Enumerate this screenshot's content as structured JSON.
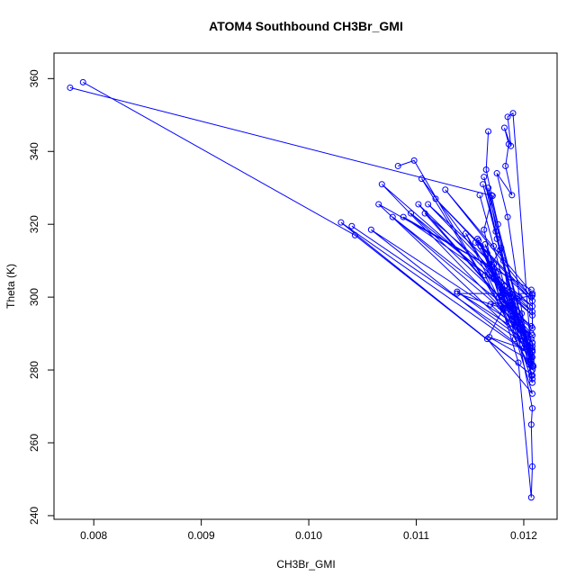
{
  "chart_data": {
    "type": "line",
    "title": "ATOM4 Southbound CH3Br_GMI",
    "xlabel": "CH3Br_GMI",
    "ylabel": "Theta (K)",
    "xlim": [
      0.00763,
      0.01231
    ],
    "ylim": [
      239,
      367
    ],
    "x_ticks": [
      0.008,
      0.009,
      0.01,
      0.011,
      0.012
    ],
    "x_tick_labels": [
      "0.008",
      "0.009",
      "0.010",
      "0.011",
      "0.012"
    ],
    "y_ticks": [
      240,
      260,
      280,
      300,
      320,
      340,
      360
    ],
    "y_tick_labels": [
      "240",
      "260",
      "280",
      "300",
      "320",
      "340",
      "360"
    ],
    "grid": false,
    "legend": "none",
    "marker": "open-circle",
    "color": "#0000ff",
    "series": [
      {
        "x": [
          0.00778,
          0.01171,
          0.01163,
          0.01177,
          0.01195,
          0.01207,
          0.01208,
          0.01207,
          0.01208,
          0.01179,
          0.01164,
          0.01207,
          0.01208,
          0.01172,
          0.01208,
          0.01166,
          0.01181,
          0.01208,
          0.01208,
          0.01169,
          0.01208,
          0.01208,
          0.01208,
          0.01189,
          0.01208
        ],
        "y": [
          357.5,
          327.8,
          318.5,
          300.0,
          282.0,
          245.0,
          253.5,
          265.0,
          269.5,
          313.5,
          306.0,
          279.5,
          276.5,
          309.0,
          273.5,
          288.5,
          297.0,
          291.5,
          300.5,
          298.0,
          287.5,
          285.0,
          283.5,
          300.0,
          281.0
        ]
      },
      {
        "x": [
          0.0079,
          0.01043,
          0.01208,
          0.0103,
          0.01207,
          0.01058,
          0.01208,
          0.01078,
          0.01207,
          0.01095,
          0.01208,
          0.01111,
          0.01208,
          0.01118,
          0.01207,
          0.01127,
          0.01208,
          0.01138,
          0.0118,
          0.01208,
          0.01168,
          0.01207
        ],
        "y": [
          359.0,
          317.0,
          278.5,
          320.5,
          284.0,
          318.5,
          289.5,
          322.0,
          292.0,
          323.0,
          296.0,
          325.5,
          299.0,
          327.0,
          300.0,
          329.5,
          301.0,
          301.0,
          297.0,
          285.0,
          289.0,
          282.5
        ]
      },
      {
        "x": [
          0.0104,
          0.01207,
          0.01065,
          0.01207,
          0.01088,
          0.01208,
          0.01108,
          0.01207,
          0.01102,
          0.01208,
          0.01068,
          0.01207,
          0.01138,
          0.01208
        ],
        "y": [
          319.5,
          286.0,
          325.5,
          302.0,
          322.0,
          297.5,
          323.0,
          290.0,
          325.5,
          295.0,
          331.0,
          288.5,
          301.5,
          286.5
        ]
      },
      {
        "x": [
          0.01083,
          0.01098,
          0.01178,
          0.01105,
          0.01185,
          0.01198,
          0.01209,
          0.01146,
          0.0118,
          0.01208,
          0.01157,
          0.0119
        ],
        "y": [
          336.0,
          337.5,
          297.5,
          332.5,
          300.5,
          295.5,
          281.0,
          317.5,
          300.5,
          285.5,
          316.0,
          294.0
        ]
      },
      {
        "x": [
          0.01167,
          0.01165,
          0.0117,
          0.01176,
          0.01181,
          0.01186,
          0.01192,
          0.012,
          0.01208,
          0.0119,
          0.01185,
          0.01188,
          0.01182,
          0.01186,
          0.01183,
          0.01189,
          0.01175,
          0.01185,
          0.01196,
          0.01202,
          0.01207
        ],
        "y": [
          345.5,
          335.0,
          328.0,
          320.0,
          310.0,
          300.0,
          292.0,
          286.0,
          280.0,
          350.5,
          349.5,
          341.5,
          346.5,
          342.0,
          336.0,
          328.0,
          334.0,
          322.0,
          300.0,
          289.5,
          283.0
        ]
      },
      {
        "x": [
          0.01159,
          0.01172,
          0.01182,
          0.01196,
          0.01208,
          0.01162,
          0.01174,
          0.01189,
          0.01204,
          0.01163,
          0.01175,
          0.0119,
          0.01207,
          0.01167,
          0.01178,
          0.01194,
          0.01208,
          0.01164,
          0.01176,
          0.01188,
          0.01199,
          0.01207
        ],
        "y": [
          328.0,
          314.0,
          303.0,
          292.0,
          277.5,
          331.0,
          318.0,
          300.0,
          286.5,
          333.0,
          316.0,
          298.0,
          283.5,
          330.0,
          313.0,
          296.0,
          281.5,
          314.5,
          307.0,
          297.0,
          288.0,
          278.5
        ]
      },
      {
        "x": [
          0.01155,
          0.01168,
          0.0118,
          0.01193,
          0.01207,
          0.0116,
          0.0117,
          0.01183,
          0.01197,
          0.01208,
          0.01158,
          0.01166,
          0.01172,
          0.01181,
          0.01192,
          0.01205
        ],
        "y": [
          315.0,
          309.0,
          301.0,
          293.0,
          286.0,
          314.0,
          306.5,
          298.0,
          290.0,
          287.5,
          315.5,
          312.0,
          305.0,
          296.5,
          288.5,
          281.5
        ]
      }
    ]
  }
}
